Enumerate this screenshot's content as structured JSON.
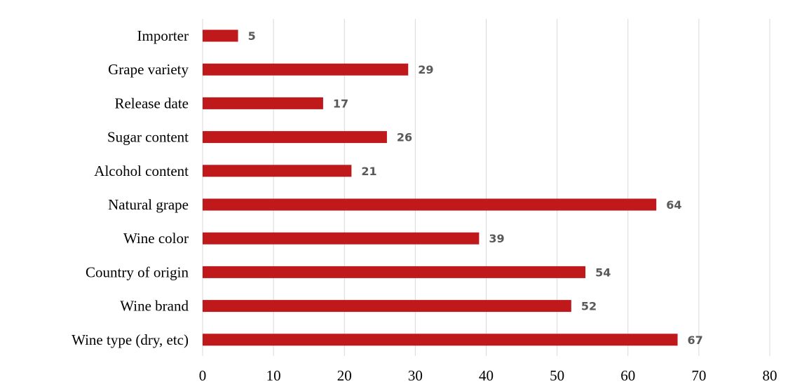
{
  "chart_data": {
    "type": "bar",
    "orientation": "horizontal",
    "categories": [
      "Importer",
      "Grape variety",
      "Release date",
      "Sugar content",
      "Alcohol content",
      "Natural grape",
      "Wine color",
      "Country of origin",
      "Wine brand",
      "Wine type (dry, etc)"
    ],
    "values": [
      5,
      29,
      17,
      26,
      21,
      64,
      39,
      54,
      52,
      67
    ],
    "title": "",
    "xlabel": "",
    "ylabel": "",
    "xlim": [
      0,
      80
    ],
    "xticks": [
      "0",
      "10",
      "20",
      "30",
      "40",
      "50",
      "60",
      "70",
      "80"
    ],
    "grid": "vertical",
    "legend": "none",
    "data_labels": true,
    "bar_color": "#c0191c",
    "grid_color": "#d9d9d9",
    "label_color": "#595959"
  }
}
